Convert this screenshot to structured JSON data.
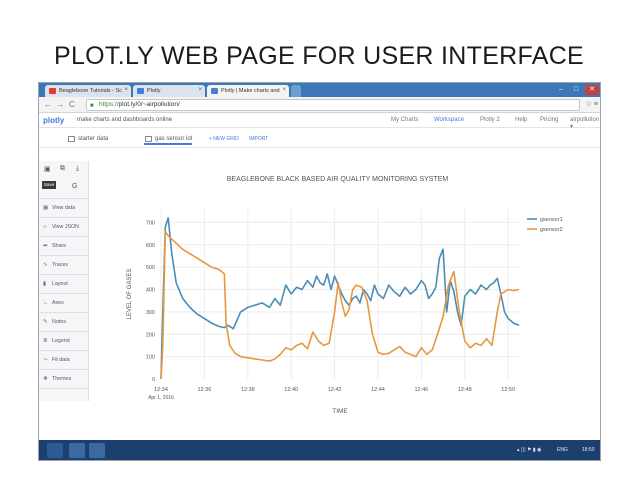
{
  "slide": {
    "title": "PLOT.LY WEB PAGE FOR USER INTERFACE"
  },
  "browser": {
    "tabs": [
      {
        "label": "Beaglebone Tutorials - Sc",
        "color": "#e23b2e"
      },
      {
        "label": "Plotly",
        "color": "#447bdc"
      },
      {
        "label": "Plotly | Make charts and",
        "color": "#447bdc"
      }
    ],
    "url_scheme": "https://",
    "url_rest": "plot.ly/0/~airpollution/",
    "window_controls": [
      "–",
      "□",
      "✕"
    ]
  },
  "plotly": {
    "logo": "plotly",
    "tagline": "make charts and dashboards online",
    "nav": [
      "My Charts",
      "Workspace",
      "Plotly 2",
      "Help",
      "Pricing",
      "airpollution ▾"
    ],
    "active_nav": "Workspace",
    "grid_tabs": [
      "starter data",
      "gas sensor iot"
    ],
    "grid_buttons": [
      "+ NEW GRID",
      "IMPORT"
    ]
  },
  "sidebar": {
    "save_tooltip": "Save",
    "items": [
      {
        "icon": "grid-icon",
        "glyph": "▦",
        "label": "View data"
      },
      {
        "icon": "code-icon",
        "glyph": "‹›",
        "label": "View JSON"
      },
      {
        "icon": "share-icon",
        "glyph": "➦",
        "label": "Share"
      },
      {
        "icon": "traces-icon",
        "glyph": "∿",
        "label": "Traces"
      },
      {
        "icon": "layout-icon",
        "glyph": "▮",
        "label": "Layout"
      },
      {
        "icon": "axes-icon",
        "glyph": "∟",
        "label": "Axes"
      },
      {
        "icon": "notes-icon",
        "glyph": "✎",
        "label": "Notes"
      },
      {
        "icon": "legend-icon",
        "glyph": "≣",
        "label": "Legend"
      },
      {
        "icon": "fit-icon",
        "glyph": "⤳",
        "label": "Fit data"
      },
      {
        "icon": "themes-icon",
        "glyph": "❖",
        "label": "Themes"
      }
    ]
  },
  "chart_data": {
    "type": "line",
    "title": "BEAGLEBONE BLACK BASED AIR QUALITY MONITORING SYSTEM",
    "xlabel": "TIME",
    "ylabel": "LEVEL OF GASES",
    "date_label": "Apr 1, 2016",
    "xlim": [
      "12:34",
      "12:50:30"
    ],
    "ylim": [
      0,
      760
    ],
    "yticks": [
      0,
      100,
      200,
      300,
      400,
      500,
      600,
      700
    ],
    "xticks": [
      "12:34",
      "12:36",
      "12:38",
      "12:40",
      "12:42",
      "12:44",
      "12:46",
      "12:48",
      "12:50"
    ],
    "legend_position": "top-right",
    "grid": true,
    "series": [
      {
        "name": "gsensor1",
        "color": "#4b8db5",
        "x": [
          "12:34:00",
          "12:34:05",
          "12:34:12",
          "12:34:20",
          "12:34:30",
          "12:34:42",
          "12:35:00",
          "12:35:20",
          "12:35:40",
          "12:36:00",
          "12:36:20",
          "12:36:40",
          "12:36:55",
          "12:37:05",
          "12:37:20",
          "12:37:40",
          "12:38:00",
          "12:38:20",
          "12:38:40",
          "12:39:00",
          "12:39:15",
          "12:39:30",
          "12:39:45",
          "12:40:00",
          "12:40:15",
          "12:40:30",
          "12:40:45",
          "12:41:00",
          "12:41:10",
          "12:41:20",
          "12:41:30",
          "12:41:40",
          "12:41:50",
          "12:42:00",
          "12:42:10",
          "12:42:20",
          "12:42:30",
          "12:42:40",
          "12:42:50",
          "12:43:00",
          "12:43:10",
          "12:43:20",
          "12:43:30",
          "12:43:40",
          "12:43:50",
          "12:44:00",
          "12:44:15",
          "12:44:30",
          "12:44:45",
          "12:45:00",
          "12:45:15",
          "12:45:30",
          "12:45:45",
          "12:46:00",
          "12:46:10",
          "12:46:20",
          "12:46:30",
          "12:46:40",
          "12:46:50",
          "12:47:00",
          "12:47:10",
          "12:47:20",
          "12:47:30",
          "12:47:40",
          "12:47:50",
          "12:48:00",
          "12:48:15",
          "12:48:30",
          "12:48:45",
          "12:49:00",
          "12:49:10",
          "12:49:20",
          "12:49:30",
          "12:49:40",
          "12:49:50",
          "12:50:00",
          "12:50:15",
          "12:50:30"
        ],
        "values": [
          0,
          300,
          680,
          720,
          560,
          430,
          360,
          320,
          290,
          270,
          250,
          235,
          230,
          240,
          225,
          300,
          320,
          330,
          340,
          320,
          360,
          330,
          420,
          380,
          410,
          400,
          440,
          410,
          460,
          430,
          420,
          470,
          400,
          460,
          420,
          380,
          350,
          330,
          360,
          370,
          340,
          400,
          380,
          350,
          420,
          380,
          360,
          420,
          390,
          370,
          410,
          380,
          400,
          440,
          420,
          360,
          380,
          410,
          540,
          580,
          300,
          440,
          390,
          300,
          240,
          370,
          400,
          380,
          420,
          400,
          420,
          430,
          450,
          380,
          300,
          270,
          250,
          240
        ]
      },
      {
        "name": "gsensor2",
        "color": "#e8973e",
        "x": [
          "12:34:00",
          "12:34:05",
          "12:34:12",
          "12:34:20",
          "12:34:40",
          "12:35:00",
          "12:35:20",
          "12:35:40",
          "12:36:00",
          "12:36:20",
          "12:36:40",
          "12:36:55",
          "12:37:00",
          "12:37:10",
          "12:37:25",
          "12:37:40",
          "12:38:00",
          "12:38:20",
          "12:38:40",
          "12:39:00",
          "12:39:15",
          "12:39:30",
          "12:39:45",
          "12:40:00",
          "12:40:15",
          "12:40:30",
          "12:40:45",
          "12:41:00",
          "12:41:15",
          "12:41:30",
          "12:41:45",
          "12:42:00",
          "12:42:10",
          "12:42:20",
          "12:42:30",
          "12:42:40",
          "12:42:50",
          "12:43:00",
          "12:43:15",
          "12:43:30",
          "12:43:45",
          "12:44:00",
          "12:44:15",
          "12:44:30",
          "12:44:45",
          "12:45:00",
          "12:45:15",
          "12:45:30",
          "12:45:45",
          "12:46:00",
          "12:46:15",
          "12:46:30",
          "12:46:45",
          "12:47:00",
          "12:47:15",
          "12:47:30",
          "12:47:45",
          "12:48:00",
          "12:48:15",
          "12:48:30",
          "12:48:45",
          "12:49:00",
          "12:49:15",
          "12:49:30",
          "12:49:40",
          "12:49:50",
          "12:50:00",
          "12:50:15",
          "12:50:30"
        ],
        "values": [
          0,
          150,
          660,
          640,
          610,
          580,
          560,
          540,
          520,
          500,
          490,
          470,
          250,
          150,
          115,
          100,
          95,
          90,
          85,
          80,
          90,
          110,
          140,
          130,
          150,
          160,
          135,
          210,
          170,
          150,
          160,
          300,
          430,
          340,
          280,
          310,
          400,
          420,
          410,
          350,
          200,
          120,
          110,
          115,
          130,
          145,
          120,
          110,
          100,
          140,
          110,
          130,
          200,
          280,
          420,
          480,
          300,
          170,
          140,
          160,
          150,
          180,
          150,
          300,
          380,
          390,
          400,
          395,
          400
        ]
      }
    ]
  },
  "taskbar": {
    "tray_lang": "ENG",
    "tray_time": "18:50",
    "tray_icons": "▴ ◫ ⚑ ▮ ◉"
  }
}
